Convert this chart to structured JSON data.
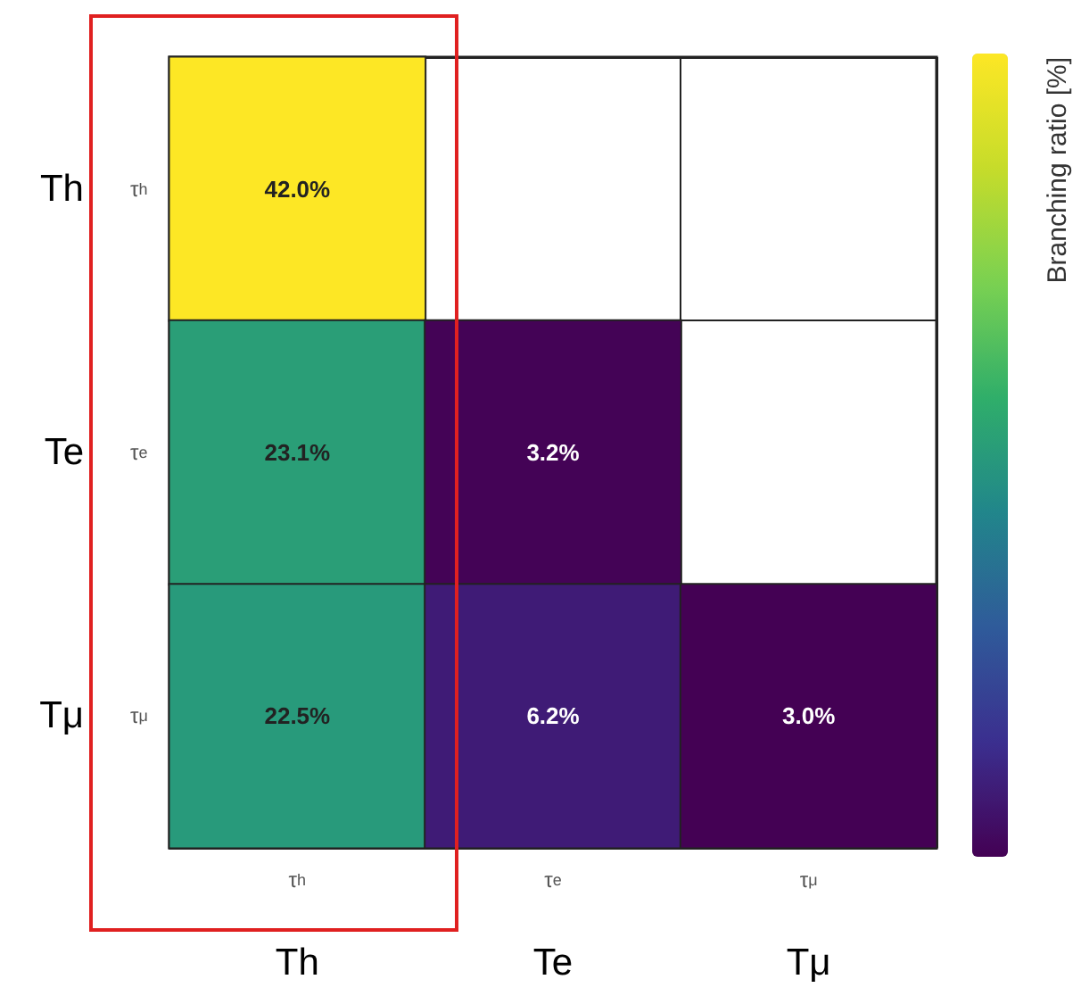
{
  "chart_data": {
    "type": "heatmap",
    "categories": [
      "τ$_{h}$",
      "τ$_{e}$",
      "τ$_{μ}$"
    ],
    "y_categories": [
      "τ$_{h}$",
      "τ$_{e}$",
      "τ$_{μ}$"
    ],
    "y2_categories": [
      "Th",
      "Te",
      "Tμ"
    ],
    "cells": [
      [
        42.0,
        null,
        null
      ],
      [
        23.1,
        3.2,
        null
      ],
      [
        22.5,
        6.2,
        3.0
      ]
    ],
    "cell_labels": [
      [
        "42.0%",
        null,
        null
      ],
      [
        "23.1%",
        "3.2%",
        null
      ],
      [
        "22.5%",
        "6.2%",
        "3.0%"
      ]
    ],
    "clabel": "Branching ratio [%]",
    "annotations": [
      "Th",
      "Te",
      "Tμ"
    ]
  }
}
